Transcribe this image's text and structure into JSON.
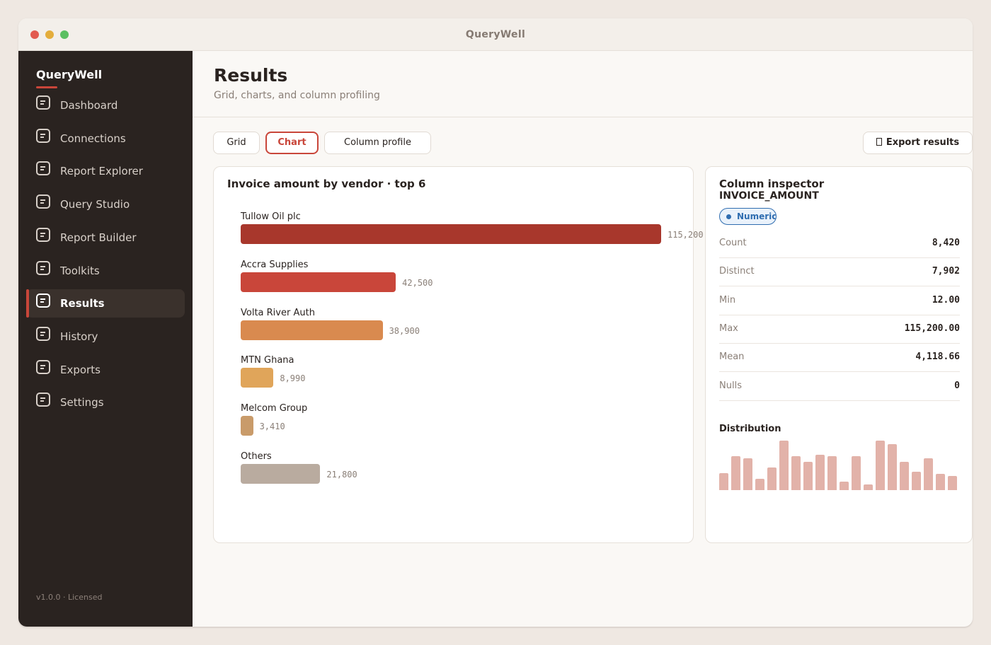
{
  "window": {
    "title": "QueryWell"
  },
  "sidebar": {
    "brand": "QueryWell",
    "items": [
      {
        "label": "Dashboard",
        "icon": "document-icon",
        "active": false
      },
      {
        "label": "Connections",
        "icon": "document-icon",
        "active": false
      },
      {
        "label": "Report Explorer",
        "icon": "document-icon",
        "active": false
      },
      {
        "label": "Query Studio",
        "icon": "document-icon",
        "active": false
      },
      {
        "label": "Report Builder",
        "icon": "document-icon",
        "active": false
      },
      {
        "label": "Toolkits",
        "icon": "document-icon",
        "active": false
      },
      {
        "label": "Results",
        "icon": "document-icon",
        "active": true
      },
      {
        "label": "History",
        "icon": "document-icon",
        "active": false
      },
      {
        "label": "Exports",
        "icon": "document-icon",
        "active": false
      },
      {
        "label": "Settings",
        "icon": "document-icon",
        "active": false
      }
    ],
    "version": "v1.0.0 · Licensed"
  },
  "header": {
    "title": "Results",
    "subtitle": "Grid, charts, and column profiling"
  },
  "tabs": [
    {
      "label": "Grid",
      "active": false
    },
    {
      "label": "Chart",
      "active": true
    },
    {
      "label": "Column profile",
      "active": false
    }
  ],
  "export": {
    "label": "Export results",
    "icon": "export-icon"
  },
  "chart": {
    "title": "Invoice amount by vendor · top 6"
  },
  "chart_data": {
    "type": "bar",
    "orientation": "horizontal",
    "title": "Invoice amount by vendor · top 6",
    "categories": [
      "Tullow Oil plc",
      "Accra Supplies",
      "Volta River Auth",
      "MTN Ghana",
      "Melcom Group",
      "Others"
    ],
    "values": [
      115200,
      42500,
      38900,
      8990,
      3410,
      21800
    ],
    "value_labels": [
      "115,200",
      "42,500",
      "38,900",
      "8,990",
      "3,410",
      "21,800"
    ],
    "colors": [
      "#a8372c",
      "#c9463a",
      "#d98a4f",
      "#e0a55a",
      "#c99b6a",
      "#b9ab9f"
    ],
    "xlim": [
      0,
      115200
    ]
  },
  "inspector": {
    "title": "Column inspector",
    "column": "INVOICE_AMOUNT",
    "type_badge": "Numeric",
    "stats": [
      {
        "label": "Count",
        "value": "8,420"
      },
      {
        "label": "Distinct",
        "value": "7,902"
      },
      {
        "label": "Min",
        "value": "12.00"
      },
      {
        "label": "Max",
        "value": "115,200.00"
      },
      {
        "label": "Mean",
        "value": "4,118.66"
      },
      {
        "label": "Nulls",
        "value": "0"
      }
    ],
    "distribution_title": "Distribution",
    "distribution": [
      0.34,
      0.68,
      0.64,
      0.23,
      0.46,
      1.0,
      0.69,
      0.57,
      0.72,
      0.68,
      0.17,
      0.69,
      0.11,
      1.0,
      0.93,
      0.57,
      0.37,
      0.65,
      0.33,
      0.29
    ],
    "distribution_color": "#e2b2a9"
  }
}
